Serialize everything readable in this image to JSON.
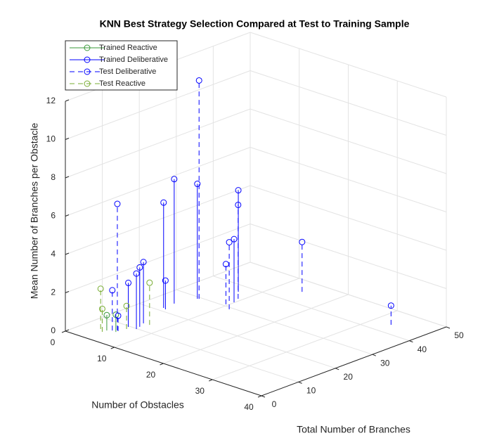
{
  "chart_data": {
    "type": "stem3",
    "title": "KNN Best Strategy Selection Compared at Test to Training Sample",
    "x_label": "Number of Obstacles",
    "y_label": "Total Number of Branches",
    "z_label": "Mean Number of Branches per Obstacle",
    "xlim": [
      0,
      40
    ],
    "xticks": [
      0,
      10,
      20,
      30,
      40
    ],
    "ylim": [
      0,
      50
    ],
    "yticks": [
      0,
      10,
      20,
      30,
      40,
      50
    ],
    "zlim": [
      0,
      12
    ],
    "zticks": [
      0,
      2,
      4,
      6,
      8,
      10,
      12
    ],
    "grid": true,
    "legend_position": "northwest",
    "series": [
      {
        "name": "Trained Reactive",
        "color": "#3a9a3a",
        "line_style": "solid",
        "x": [
          4.3,
          5.7
        ],
        "y": [
          5.5,
          6.1
        ],
        "z": [
          0.8,
          0.9
        ]
      },
      {
        "name": "Trained Deliberative",
        "color": "#0000ff",
        "line_style": "solid",
        "x": [
          5.6,
          7.1,
          6.8,
          6.2,
          3.9,
          4.5,
          3.8,
          4.9,
          7.3,
          9.9
        ],
        "y": [
          9.6,
          9.8,
          11.1,
          12.9,
          21.4,
          21.1,
          24.4,
          29.2,
          37.1,
          32.5
        ],
        "z": [
          2.3,
          2.9,
          3.1,
          3.2,
          5.5,
          1.5,
          6.5,
          6.0,
          5.3,
          3.3
        ]
      },
      {
        "name": "Test Deliberative",
        "color": "#0000ff",
        "line_style": "dashed",
        "x": [
          5.4,
          4.9,
          5.1,
          9.6,
          11.4,
          9.3,
          14.2,
          33.4,
          5.7
        ],
        "y": [
          6.9,
          6.2,
          29.4,
          30.7,
          29.2,
          34.4,
          45.2,
          43.8,
          6.7
        ],
        "z": [
          6.6,
          2.1,
          11.4,
          2.1,
          3.5,
          4.9,
          2.6,
          1.0,
          0.8
        ]
      },
      {
        "name": "Test Reactive",
        "color": "#77ac30",
        "line_style": "dashed",
        "x": [
          3.2,
          4.2,
          6.0,
          7.3
        ],
        "y": [
          5.3,
          4.4,
          8.6,
          13.1
        ],
        "z": [
          2.1,
          1.2,
          1.2,
          2.2
        ]
      }
    ]
  }
}
